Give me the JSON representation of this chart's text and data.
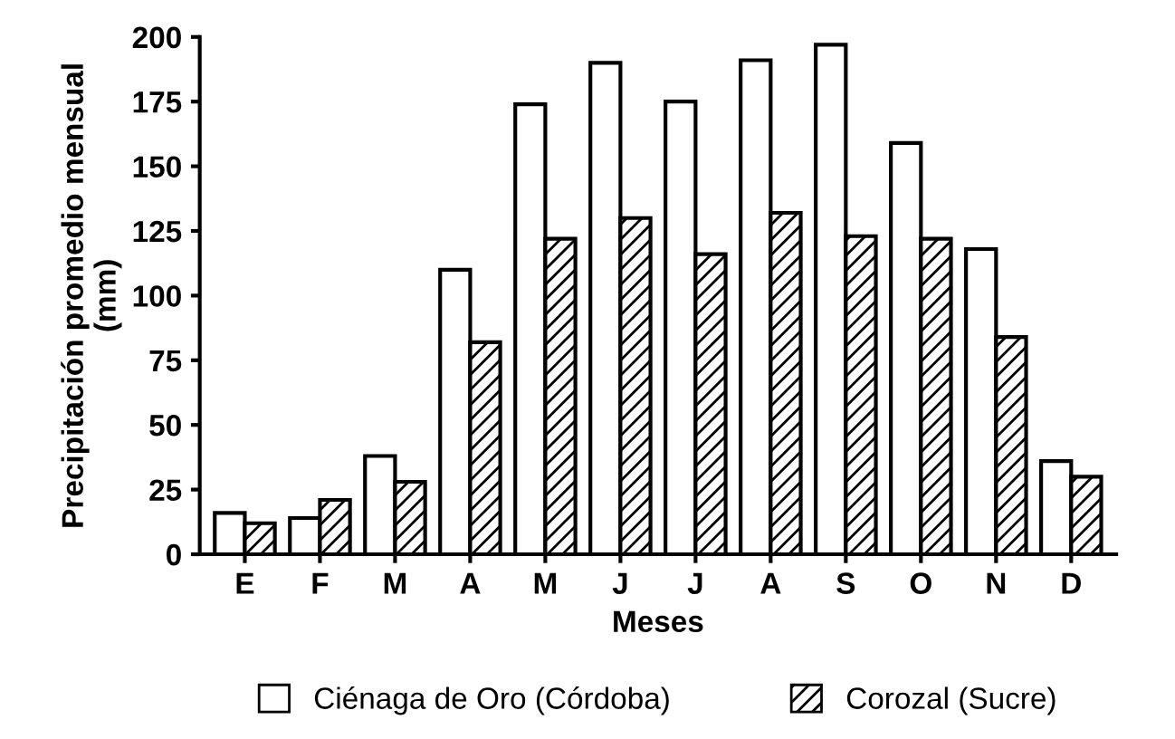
{
  "chart_data": {
    "type": "bar",
    "xlabel": "Meses",
    "ylabel": "Precipitación promedio mensual\n(mm)",
    "categories": [
      "E",
      "F",
      "M",
      "A",
      "M",
      "J",
      "J",
      "A",
      "S",
      "O",
      "N",
      "D"
    ],
    "series": [
      {
        "name": "Ciénaga de Oro (Córdoba)",
        "color": "#ffffff",
        "values": [
          16,
          14,
          38,
          110,
          174,
          190,
          175,
          191,
          197,
          159,
          118,
          36
        ]
      },
      {
        "name": "Corozal (Sucre)",
        "color": "#000000",
        "values": [
          12,
          21,
          28,
          82,
          122,
          130,
          116,
          132,
          123,
          122,
          84,
          30
        ]
      }
    ],
    "ylim": [
      0,
      200
    ],
    "yticks": [
      0,
      25,
      50,
      75,
      100,
      125,
      150,
      175,
      200
    ],
    "grid": false,
    "legend": "bottom"
  }
}
